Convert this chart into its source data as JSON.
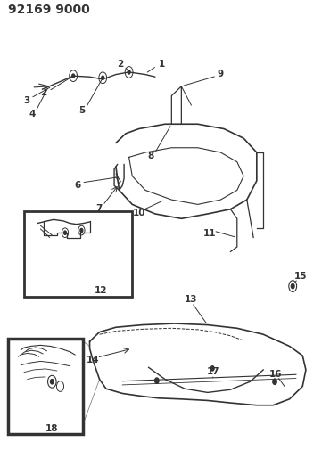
{
  "title": "92169 9000",
  "bg_color": "#ffffff",
  "line_color": "#333333",
  "title_fontsize": 10,
  "label_fontsize": 7.5,
  "figsize": [
    3.7,
    5.33
  ],
  "dpi": 100
}
